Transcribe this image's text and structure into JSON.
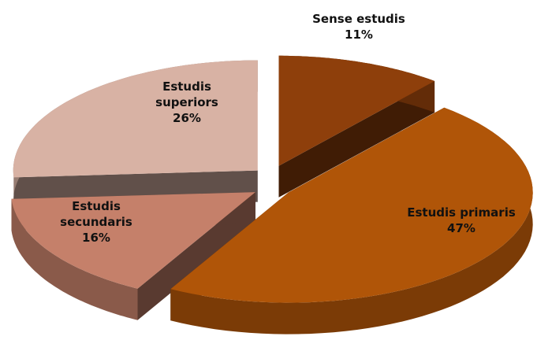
{
  "chart_data": {
    "type": "pie",
    "categories": [
      "Sense estudis",
      "Estudis primaris",
      "Estudis secundaris",
      "Estudis superiors"
    ],
    "values": [
      11,
      47,
      16,
      26
    ],
    "value_labels": [
      "11%",
      "47%",
      "16%",
      "26%"
    ],
    "colors": [
      "#8e3f0b",
      "#b05508",
      "#c5806a",
      "#d8b2a4"
    ]
  }
}
